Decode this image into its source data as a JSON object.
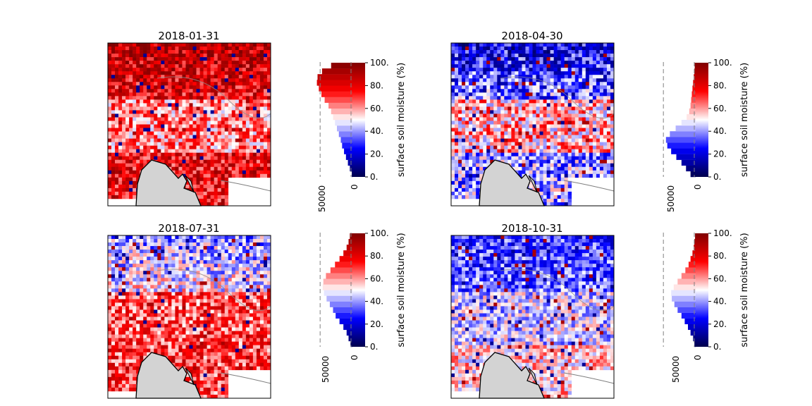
{
  "figure": {
    "colorbar_label": "surface soil moisture (%)",
    "colorbar_ticks": [
      "0.",
      "20.",
      "40.",
      "60.",
      "80.",
      "100."
    ],
    "colormap": "seismic_r",
    "colors": {
      "wet": "#00008b",
      "mid": "#ffffff",
      "dry": "#8b0000",
      "land": "#d3d3d3"
    }
  },
  "chart_data": [
    {
      "type": "heatmap",
      "title": "2018-01-31",
      "hist_ticks": [
        "50000",
        "0"
      ],
      "hist_bins": [
        0,
        5,
        10,
        15,
        20,
        25,
        30,
        35,
        40,
        45,
        50,
        55,
        60,
        65,
        70,
        75,
        80,
        85,
        90,
        95,
        100
      ],
      "hist_counts": [
        1000,
        4000,
        7000,
        10000,
        13000,
        16000,
        18000,
        21000,
        24000,
        27000,
        30000,
        33000,
        37000,
        43000,
        48000,
        52000,
        55000,
        54000,
        47000,
        33000,
        12000
      ],
      "moisture_field": {
        "north_band": 88,
        "center_band": 62,
        "south_band": 78,
        "variability": 18
      }
    },
    {
      "type": "heatmap",
      "title": "2018-04-30",
      "hist_ticks": [
        "50000",
        "0"
      ],
      "hist_bins": [
        0,
        5,
        10,
        15,
        20,
        25,
        30,
        35,
        40,
        45,
        50,
        55,
        60,
        65,
        70,
        75,
        80,
        85,
        90,
        95,
        100
      ],
      "hist_counts": [
        8000,
        15000,
        22000,
        30000,
        38000,
        44000,
        46000,
        40000,
        31000,
        22000,
        14000,
        10000,
        8000,
        7000,
        6000,
        5000,
        4000,
        3000,
        2000,
        1500,
        1000
      ],
      "moisture_field": {
        "north_band": 22,
        "center_band": 58,
        "south_band": 40,
        "variability": 20
      }
    },
    {
      "type": "heatmap",
      "title": "2018-07-31",
      "hist_ticks": [
        "50000",
        "0"
      ],
      "hist_bins": [
        0,
        5,
        10,
        15,
        20,
        25,
        30,
        35,
        40,
        45,
        50,
        55,
        60,
        65,
        70,
        75,
        80,
        85,
        90,
        95,
        100
      ],
      "hist_counts": [
        3000,
        6000,
        9000,
        14000,
        20000,
        26000,
        30000,
        35000,
        40000,
        44000,
        46000,
        45000,
        41000,
        34000,
        27000,
        20000,
        14000,
        9000,
        6000,
        4000,
        2000
      ],
      "moisture_field": {
        "north_band": 40,
        "center_band": 68,
        "south_band": 70,
        "variability": 18
      }
    },
    {
      "type": "heatmap",
      "title": "2018-10-31",
      "hist_ticks": [
        "50000",
        "0"
      ],
      "hist_bins": [
        0,
        5,
        10,
        15,
        20,
        25,
        30,
        35,
        40,
        45,
        50,
        55,
        60,
        65,
        70,
        75,
        80,
        85,
        90,
        95,
        100
      ],
      "hist_counts": [
        2000,
        4000,
        8000,
        12000,
        17000,
        22000,
        28000,
        33000,
        37000,
        38000,
        34000,
        28000,
        22000,
        16000,
        11000,
        8000,
        5000,
        3000,
        2000,
        1000,
        500
      ],
      "moisture_field": {
        "north_band": 30,
        "center_band": 45,
        "south_band": 55,
        "variability": 16
      }
    }
  ]
}
